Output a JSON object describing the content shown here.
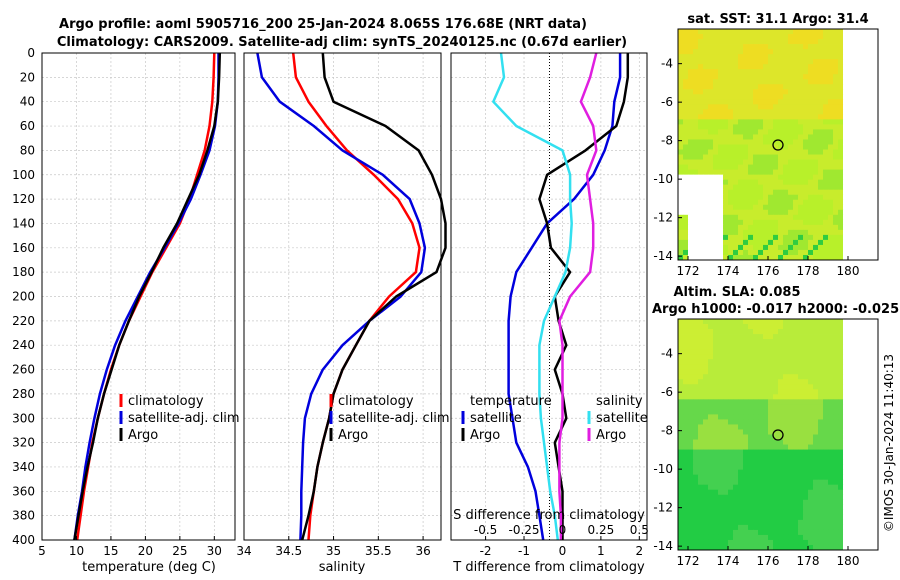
{
  "title": {
    "line1": "Argo profile: aoml 5905716_200 25-Jan-2024 8.065S 176.68E (NRT data)",
    "line2": "Climatology: CARS2009. Satellite-adj clim: synTS_20240125.nc (0.67d earlier)"
  },
  "colors": {
    "climatology": "#ff0000",
    "satellite": "#0000dd",
    "argo": "#000000",
    "sat_diff_s": "#33e0f0",
    "argo_diff_s": "#e01ee0",
    "grid": "#c8c8c8"
  },
  "depth_axis": {
    "ticks": [
      "0",
      "20",
      "40",
      "60",
      "80",
      "100",
      "120",
      "140",
      "160",
      "180",
      "200",
      "220",
      "240",
      "260",
      "280",
      "300",
      "320",
      "340",
      "360",
      "380",
      "400"
    ],
    "range": [
      0,
      400
    ]
  },
  "chart_data": [
    {
      "id": "temperature",
      "type": "line",
      "xlabel": "temperature (deg C)",
      "xlim": [
        5,
        33
      ],
      "xticks": [
        "5",
        "10",
        "15",
        "20",
        "25",
        "30"
      ],
      "ylim": [
        0,
        400
      ],
      "legend": [
        "climatology",
        "satellite-adj. clim",
        "Argo"
      ],
      "series": [
        {
          "name": "climatology",
          "color": "#ff0000",
          "depth": [
            0,
            20,
            40,
            60,
            80,
            100,
            120,
            140,
            160,
            180,
            200,
            220,
            240,
            260,
            280,
            300,
            320,
            340,
            360,
            380,
            400
          ],
          "values": [
            30.0,
            29.9,
            29.7,
            29.3,
            28.6,
            27.5,
            26.4,
            25.0,
            23.0,
            21.0,
            19.3,
            17.6,
            16.2,
            15.0,
            14.0,
            13.1,
            12.3,
            11.7,
            11.1,
            10.6,
            10.1
          ]
        },
        {
          "name": "satellite-adj. clim",
          "color": "#0000dd",
          "depth": [
            0,
            20,
            40,
            60,
            80,
            100,
            120,
            140,
            160,
            180,
            200,
            220,
            240,
            260,
            280,
            300,
            320,
            340,
            360,
            380,
            400
          ],
          "values": [
            30.6,
            30.6,
            30.5,
            30.1,
            29.3,
            28.0,
            26.6,
            24.8,
            22.8,
            20.7,
            18.9,
            17.1,
            15.6,
            14.4,
            13.4,
            12.6,
            11.9,
            11.3,
            10.8,
            10.2,
            9.7
          ]
        },
        {
          "name": "Argo",
          "color": "#000000",
          "depth": [
            0,
            20,
            40,
            60,
            80,
            100,
            120,
            140,
            160,
            180,
            200,
            220,
            240,
            260,
            280,
            300,
            320,
            340,
            360,
            380,
            400
          ],
          "values": [
            30.8,
            30.7,
            30.5,
            30.0,
            29.0,
            27.8,
            26.2,
            24.6,
            22.6,
            20.9,
            19.1,
            17.6,
            16.2,
            15.1,
            14.0,
            13.1,
            12.4,
            11.6,
            10.9,
            10.3,
            9.7
          ]
        }
      ]
    },
    {
      "id": "salinity",
      "type": "line",
      "xlabel": "salinity",
      "xlim": [
        34,
        36.2
      ],
      "xticks": [
        "34",
        "34.5",
        "35",
        "35.5",
        "36"
      ],
      "ylim": [
        0,
        400
      ],
      "legend": [
        "climatology",
        "satellite-adj. clim",
        "Argo"
      ],
      "series": [
        {
          "name": "climatology",
          "color": "#ff0000",
          "depth": [
            0,
            20,
            40,
            60,
            80,
            100,
            120,
            140,
            160,
            180,
            200,
            220,
            240,
            260,
            280,
            300,
            320,
            340,
            360,
            380,
            400
          ],
          "values": [
            34.55,
            34.58,
            34.72,
            34.92,
            35.15,
            35.45,
            35.72,
            35.88,
            35.96,
            35.92,
            35.62,
            35.4,
            35.25,
            35.1,
            35.0,
            34.95,
            34.88,
            34.82,
            34.78,
            34.74,
            34.72
          ]
        },
        {
          "name": "satellite-adj. clim",
          "color": "#0000dd",
          "depth": [
            0,
            20,
            40,
            60,
            80,
            100,
            120,
            140,
            160,
            180,
            200,
            220,
            240,
            260,
            280,
            300,
            320,
            340,
            360,
            380,
            400
          ],
          "values": [
            34.15,
            34.2,
            34.4,
            34.78,
            35.1,
            35.55,
            35.85,
            35.96,
            36.02,
            35.98,
            35.75,
            35.4,
            35.1,
            34.88,
            34.75,
            34.68,
            34.66,
            34.65,
            34.64,
            34.64,
            34.63
          ]
        },
        {
          "name": "Argo",
          "color": "#000000",
          "depth": [
            0,
            20,
            40,
            60,
            80,
            100,
            120,
            140,
            160,
            180,
            200,
            220,
            240,
            260,
            280,
            300,
            320,
            340,
            360,
            380,
            400
          ],
          "values": [
            34.88,
            34.9,
            35.0,
            35.58,
            35.95,
            36.1,
            36.2,
            36.25,
            36.25,
            36.15,
            35.7,
            35.4,
            35.25,
            35.1,
            35.0,
            34.95,
            34.88,
            34.82,
            34.78,
            34.72,
            34.65
          ]
        }
      ]
    },
    {
      "id": "differences",
      "type": "line",
      "xlabel": "T difference from climatology",
      "xlabel_top": "S difference from climatology",
      "xlim": [
        -2.9,
        2.2
      ],
      "xticks": [
        "-2",
        "-1",
        "0",
        "1",
        "2"
      ],
      "xlim_top": [
        -0.725,
        0.55
      ],
      "xticks_top": [
        "-0.5",
        "-0.25",
        "0",
        "0.25",
        "0.5"
      ],
      "ylim": [
        0,
        400
      ],
      "legend": {
        "temperature_header": "temperature",
        "salinity_header": "salinity",
        "t_satellite": "satellite",
        "t_argo": "Argo",
        "s_satellite": "satellite",
        "s_argo": "Argo"
      },
      "series": [
        {
          "name": "T satellite",
          "color": "#0000dd",
          "axis": "T",
          "depth": [
            0,
            20,
            40,
            60,
            80,
            100,
            120,
            140,
            160,
            180,
            200,
            220,
            240,
            260,
            280,
            300,
            320,
            340,
            360,
            380,
            400
          ],
          "values": [
            1.5,
            1.5,
            1.35,
            1.3,
            1.1,
            0.8,
            0.3,
            -0.4,
            -0.8,
            -1.2,
            -1.35,
            -1.4,
            -1.4,
            -1.4,
            -1.4,
            -1.3,
            -1.2,
            -0.9,
            -0.7,
            -0.6,
            -0.5
          ]
        },
        {
          "name": "T Argo",
          "color": "#000000",
          "axis": "T",
          "depth": [
            0,
            20,
            40,
            60,
            80,
            100,
            120,
            140,
            160,
            180,
            200,
            220,
            240,
            260,
            280,
            300,
            320,
            340,
            360,
            380,
            400
          ],
          "values": [
            1.7,
            1.7,
            1.6,
            1.4,
            0.6,
            -0.4,
            -0.6,
            -0.4,
            -0.3,
            0.2,
            -0.2,
            -0.1,
            0.1,
            -0.2,
            0.0,
            0.1,
            -0.2,
            -0.1,
            0.0,
            0.0,
            0.0
          ]
        },
        {
          "name": "S satellite",
          "color": "#33e0f0",
          "axis": "S",
          "depth": [
            0,
            20,
            40,
            60,
            80,
            100,
            120,
            140,
            160,
            180,
            200,
            220,
            240,
            260,
            280,
            300,
            320,
            340,
            360,
            380,
            400
          ],
          "values": [
            -0.4,
            -0.38,
            -0.45,
            -0.3,
            0.0,
            0.05,
            0.05,
            0.06,
            0.05,
            0.02,
            -0.05,
            -0.12,
            -0.15,
            -0.15,
            -0.15,
            -0.14,
            -0.12,
            -0.1,
            -0.08,
            -0.05,
            -0.03
          ]
        },
        {
          "name": "S Argo",
          "color": "#e01ee0",
          "axis": "S",
          "depth": [
            0,
            20,
            40,
            60,
            80,
            100,
            120,
            140,
            160,
            180,
            200,
            220,
            240,
            260,
            280,
            300,
            320,
            340,
            360,
            380,
            400
          ],
          "values": [
            0.22,
            0.18,
            0.12,
            0.2,
            0.22,
            0.16,
            0.18,
            0.2,
            0.2,
            0.18,
            0.05,
            -0.02,
            0.0,
            0.0,
            0.0,
            0.0,
            -0.02,
            -0.02,
            -0.02,
            -0.01,
            -0.01
          ]
        }
      ]
    },
    {
      "id": "sst-map",
      "type": "heatmap",
      "title": "sat. SST: 31.1 Argo: 31.4",
      "xticks": [
        "172",
        "174",
        "176",
        "178",
        "180"
      ],
      "yticks": [
        "-4",
        "-6",
        "-8",
        "-10",
        "-12",
        "-14"
      ],
      "xlim": [
        171.5,
        181.5
      ],
      "ylim": [
        -14.2,
        -2.2
      ],
      "argo_position": [
        176.68,
        -8.065
      ]
    },
    {
      "id": "sla-map",
      "type": "heatmap",
      "title": "Altim. SLA: 0.085",
      "subtitle": "Argo h1000: -0.017 h2000: -0.025",
      "xticks": [
        "172",
        "174",
        "176",
        "178",
        "180"
      ],
      "yticks": [
        "-4",
        "-6",
        "-8",
        "-10",
        "-12",
        "-14"
      ],
      "xlim": [
        171.5,
        181.5
      ],
      "ylim": [
        -14.2,
        -2.2
      ],
      "argo_position": [
        176.68,
        -8.065
      ]
    }
  ],
  "watermark": "©IMOS 30-Jan-2024 11:40:13"
}
